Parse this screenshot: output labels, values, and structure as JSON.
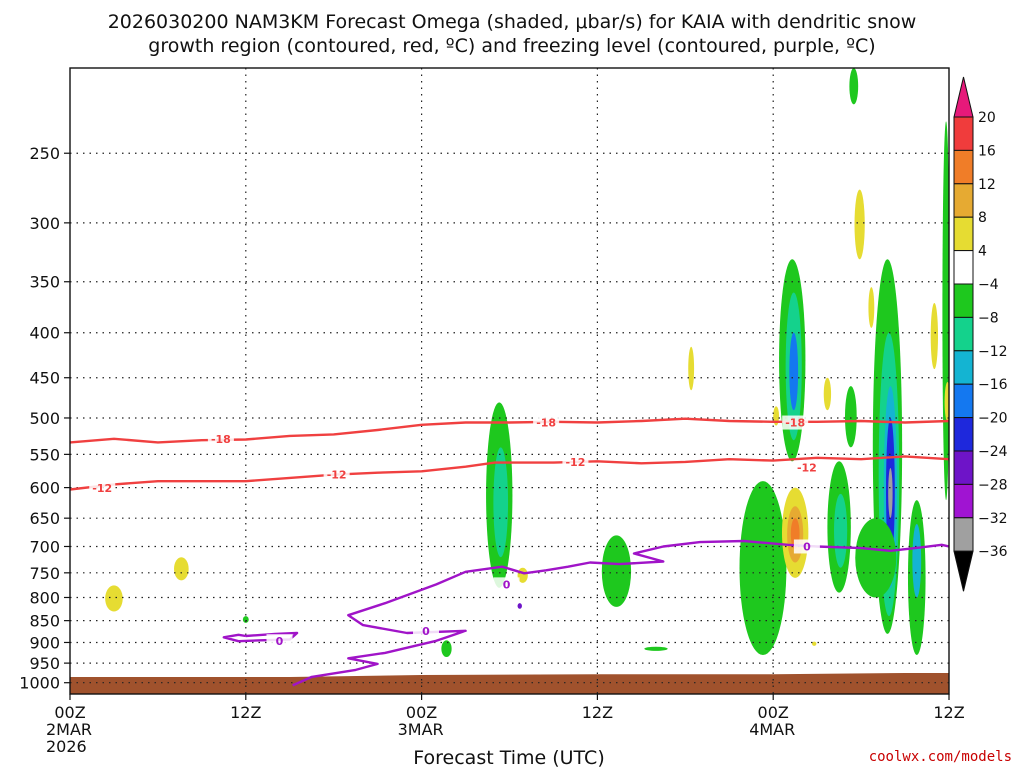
{
  "chart_data": {
    "type": "time-height contour",
    "title_line1": "2026030200 NAM3KM Forecast Omega (shaded, μbar/s) for KAIA with dendritic snow",
    "title_line2": "growth region (contoured, red, ºC) and freezing level (contoured, purple, ºC)",
    "xlabel": "Forecast Time (UTC)",
    "credit": "coolwx.com/models",
    "x_range_hours": [
      0,
      60
    ],
    "y_range_hpa": [
      200,
      1030
    ],
    "y_scale": "log-pressure",
    "grid": true,
    "x_ticks": [
      {
        "hour": 0,
        "label": "00Z",
        "sub1": "2MAR",
        "sub2": "2026"
      },
      {
        "hour": 12,
        "label": "12Z",
        "sub1": "",
        "sub2": ""
      },
      {
        "hour": 24,
        "label": "00Z",
        "sub1": "3MAR",
        "sub2": ""
      },
      {
        "hour": 36,
        "label": "12Z",
        "sub1": "",
        "sub2": ""
      },
      {
        "hour": 48,
        "label": "00Z",
        "sub1": "4MAR",
        "sub2": ""
      },
      {
        "hour": 60,
        "label": "12Z",
        "sub1": "",
        "sub2": ""
      }
    ],
    "y_ticks": [
      250,
      300,
      350,
      400,
      450,
      500,
      550,
      600,
      650,
      700,
      750,
      800,
      850,
      900,
      950,
      1000
    ],
    "colorbar": {
      "levels": [
        "20",
        "16",
        "12",
        "8",
        "4",
        "−4",
        "−8",
        "−12",
        "−16",
        "−20",
        "−24",
        "−28",
        "−32",
        "−36"
      ],
      "colors": [
        "#e6197a",
        "#f03c3c",
        "#f07d28",
        "#e6aa32",
        "#e6dc32",
        "#ffffff",
        "#1ec81e",
        "#14d28c",
        "#14b4d2",
        "#1478f0",
        "#1e28dc",
        "#6e14c8",
        "#a014d2",
        "#a0a0a0",
        "#000000"
      ]
    },
    "contours": [
      {
        "name": "-18",
        "color": "#f04040",
        "points": [
          [
            0,
            533
          ],
          [
            3,
            528
          ],
          [
            6,
            533
          ],
          [
            9,
            530
          ],
          [
            12,
            529
          ],
          [
            15,
            524
          ],
          [
            18,
            522
          ],
          [
            21,
            516
          ],
          [
            24,
            509
          ],
          [
            27,
            506
          ],
          [
            30,
            506
          ],
          [
            33,
            505
          ],
          [
            36,
            506
          ],
          [
            39,
            504
          ],
          [
            42,
            501
          ],
          [
            45,
            504
          ],
          [
            48,
            505
          ],
          [
            51,
            505
          ],
          [
            54,
            504
          ],
          [
            57,
            506
          ],
          [
            60,
            504
          ]
        ],
        "labels": [
          {
            "hour": 10.3,
            "hpa": 528,
            "text": "-18"
          },
          {
            "hour": 32.5,
            "hpa": 506,
            "text": "-18"
          },
          {
            "hour": 49.5,
            "hpa": 506,
            "text": "-18"
          }
        ]
      },
      {
        "name": "-12",
        "color": "#f04040",
        "points": [
          [
            0,
            603
          ],
          [
            3,
            595
          ],
          [
            6,
            590
          ],
          [
            9,
            590
          ],
          [
            12,
            590
          ],
          [
            15,
            585
          ],
          [
            18,
            580
          ],
          [
            21,
            577
          ],
          [
            24,
            575
          ],
          [
            27,
            568
          ],
          [
            29,
            562
          ],
          [
            33,
            562
          ],
          [
            36,
            560
          ],
          [
            39,
            563
          ],
          [
            42,
            561
          ],
          [
            45,
            557
          ],
          [
            48,
            559
          ],
          [
            51,
            555
          ],
          [
            54,
            557
          ],
          [
            57,
            553
          ],
          [
            60,
            557
          ]
        ],
        "labels": [
          {
            "hour": 2.2,
            "hpa": 601,
            "text": "-12"
          },
          {
            "hour": 18.2,
            "hpa": 580,
            "text": "-12"
          },
          {
            "hour": 34.5,
            "hpa": 561,
            "text": "-12"
          },
          {
            "hour": 50.3,
            "hpa": 569,
            "text": "-12"
          }
        ]
      },
      {
        "name": "0",
        "color": "#a014c8",
        "points": [
          [
            15.2,
            1007
          ],
          [
            16.5,
            985
          ],
          [
            19.5,
            967
          ],
          [
            21,
            952
          ],
          [
            19,
            938
          ],
          [
            21.5,
            925
          ],
          [
            25,
            896
          ],
          [
            27,
            873
          ],
          [
            23,
            878
          ],
          [
            20,
            860
          ],
          [
            19,
            838
          ],
          [
            21.5,
            812
          ],
          [
            25,
            773
          ],
          [
            27,
            748
          ],
          [
            29.5,
            738
          ],
          [
            31,
            751
          ],
          [
            32.5,
            745
          ],
          [
            34,
            738
          ],
          [
            35.5,
            730
          ],
          [
            37.5,
            733
          ],
          [
            40.5,
            728
          ],
          [
            38.5,
            713
          ],
          [
            40.5,
            700
          ],
          [
            43,
            692
          ],
          [
            46,
            690
          ],
          [
            49,
            697
          ],
          [
            51,
            700
          ],
          [
            54,
            703
          ],
          [
            56,
            708
          ],
          [
            58,
            702
          ],
          [
            59.5,
            697
          ],
          [
            60,
            700
          ]
        ],
        "labels": [
          {
            "hour": 24.3,
            "hpa": 873,
            "text": "0"
          },
          {
            "hour": 29.8,
            "hpa": 773,
            "text": "0"
          },
          {
            "hour": 50.3,
            "hpa": 700,
            "text": "0"
          }
        ]
      },
      {
        "name": "0",
        "color": "#a014c8",
        "points": [
          [
            12,
            885
          ],
          [
            14,
            880
          ],
          [
            15.5,
            878
          ],
          [
            15,
            893
          ],
          [
            13,
            895
          ],
          [
            11.5,
            897
          ],
          [
            10.5,
            888
          ],
          [
            11.5,
            882
          ],
          [
            12,
            885
          ]
        ],
        "labels": [
          {
            "hour": 14.3,
            "hpa": 897,
            "text": "0"
          }
        ]
      }
    ],
    "shading": [
      {
        "hour": 29.3,
        "hpa": 600,
        "hw": 0.9,
        "top": 480,
        "bottom": 780,
        "value": -8
      },
      {
        "hour": 29.4,
        "hpa": 600,
        "hw": 0.5,
        "top": 540,
        "bottom": 720,
        "value": -12
      },
      {
        "hour": 37.3,
        "hpa": 750,
        "hw": 1.0,
        "top": 680,
        "bottom": 820,
        "value": -8
      },
      {
        "hour": 47.3,
        "hpa": 720,
        "hw": 1.6,
        "top": 590,
        "bottom": 930,
        "value": -8
      },
      {
        "hour": 49.3,
        "hpa": 440,
        "hw": 0.9,
        "top": 330,
        "bottom": 560,
        "value": -8
      },
      {
        "hour": 49.4,
        "hpa": 440,
        "hw": 0.55,
        "top": 360,
        "bottom": 530,
        "value": -12
      },
      {
        "hour": 49.4,
        "hpa": 440,
        "hw": 0.3,
        "top": 400,
        "bottom": 490,
        "value": -20
      },
      {
        "hour": 49.5,
        "hpa": 680,
        "hw": 0.9,
        "top": 600,
        "bottom": 760,
        "value": 4
      },
      {
        "hour": 49.5,
        "hpa": 680,
        "hw": 0.55,
        "top": 630,
        "bottom": 730,
        "value": 8
      },
      {
        "hour": 49.5,
        "hpa": 680,
        "hw": 0.3,
        "top": 650,
        "bottom": 705,
        "value": 12
      },
      {
        "hour": 52.5,
        "hpa": 670,
        "hw": 0.8,
        "top": 560,
        "bottom": 790,
        "value": -8
      },
      {
        "hour": 52.6,
        "hpa": 670,
        "hw": 0.45,
        "top": 610,
        "bottom": 740,
        "value": -12
      },
      {
        "hour": 55.8,
        "hpa": 600,
        "hw": 1.0,
        "top": 330,
        "bottom": 880,
        "value": -8
      },
      {
        "hour": 55.9,
        "hpa": 600,
        "hw": 0.7,
        "top": 400,
        "bottom": 840,
        "value": -12
      },
      {
        "hour": 56.0,
        "hpa": 600,
        "hw": 0.45,
        "top": 460,
        "bottom": 780,
        "value": -16
      },
      {
        "hour": 56.0,
        "hpa": 600,
        "hw": 0.3,
        "top": 500,
        "bottom": 730,
        "value": -24
      },
      {
        "hour": 56.0,
        "hpa": 600,
        "hw": 0.15,
        "top": 570,
        "bottom": 650,
        "value": -36
      },
      {
        "hour": 57.8,
        "hpa": 720,
        "hw": 0.6,
        "top": 620,
        "bottom": 930,
        "value": -8
      },
      {
        "hour": 57.8,
        "hpa": 720,
        "hw": 0.3,
        "top": 660,
        "bottom": 800,
        "value": -16
      },
      {
        "hour": 55.0,
        "hpa": 720,
        "hw": 1.4,
        "top": 650,
        "bottom": 800,
        "value": -8
      },
      {
        "hour": 59.8,
        "hpa": 350,
        "hw": 0.25,
        "top": 230,
        "bottom": 620,
        "value": -8
      },
      {
        "hour": 53.5,
        "hpa": 210,
        "hw": 0.3,
        "top": 200,
        "bottom": 220,
        "value": -8
      },
      {
        "hour": 53.3,
        "hpa": 480,
        "hw": 0.4,
        "top": 460,
        "bottom": 540,
        "value": -8
      },
      {
        "hour": 3.0,
        "hpa": 800,
        "hw": 0.6,
        "top": 775,
        "bottom": 830,
        "value": 4
      },
      {
        "hour": 7.6,
        "hpa": 745,
        "hw": 0.5,
        "top": 720,
        "bottom": 765,
        "value": 4
      },
      {
        "hour": 30.9,
        "hpa": 755,
        "hw": 0.35,
        "top": 740,
        "bottom": 770,
        "value": 4
      },
      {
        "hour": 42.4,
        "hpa": 440,
        "hw": 0.2,
        "top": 415,
        "bottom": 465,
        "value": 4
      },
      {
        "hour": 53.9,
        "hpa": 300,
        "hw": 0.35,
        "top": 275,
        "bottom": 330,
        "value": 4
      },
      {
        "hour": 59.0,
        "hpa": 400,
        "hw": 0.25,
        "top": 370,
        "bottom": 440,
        "value": 4
      },
      {
        "hour": 54.7,
        "hpa": 375,
        "hw": 0.2,
        "top": 355,
        "bottom": 395,
        "value": 4
      },
      {
        "hour": 51.7,
        "hpa": 470,
        "hw": 0.25,
        "top": 450,
        "bottom": 490,
        "value": 4
      },
      {
        "hour": 48.2,
        "hpa": 495,
        "hw": 0.2,
        "top": 485,
        "bottom": 510,
        "value": 4
      },
      {
        "hour": 59.9,
        "hpa": 480,
        "hw": 0.2,
        "top": 455,
        "bottom": 505,
        "value": 4
      },
      {
        "hour": 25.7,
        "hpa": 915,
        "hw": 0.35,
        "top": 895,
        "bottom": 935,
        "value": -8
      },
      {
        "hour": 40.0,
        "hpa": 915,
        "hw": 0.8,
        "top": 910,
        "bottom": 920,
        "value": -8
      },
      {
        "hour": 12.0,
        "hpa": 848,
        "hw": 0.2,
        "top": 840,
        "bottom": 855,
        "value": -8
      },
      {
        "hour": 30.7,
        "hpa": 818,
        "hw": 0.15,
        "top": 812,
        "bottom": 824,
        "value": -28
      },
      {
        "hour": 50.8,
        "hpa": 903,
        "hw": 0.15,
        "top": 898,
        "bottom": 908,
        "value": 4
      }
    ],
    "terrain": {
      "color": "#a0522d",
      "bottom_hpa": 1030,
      "surface": [
        [
          0,
          985
        ],
        [
          15,
          985
        ],
        [
          24,
          980
        ],
        [
          36,
          978
        ],
        [
          48,
          978
        ],
        [
          57,
          975
        ],
        [
          60,
          975
        ]
      ]
    }
  }
}
